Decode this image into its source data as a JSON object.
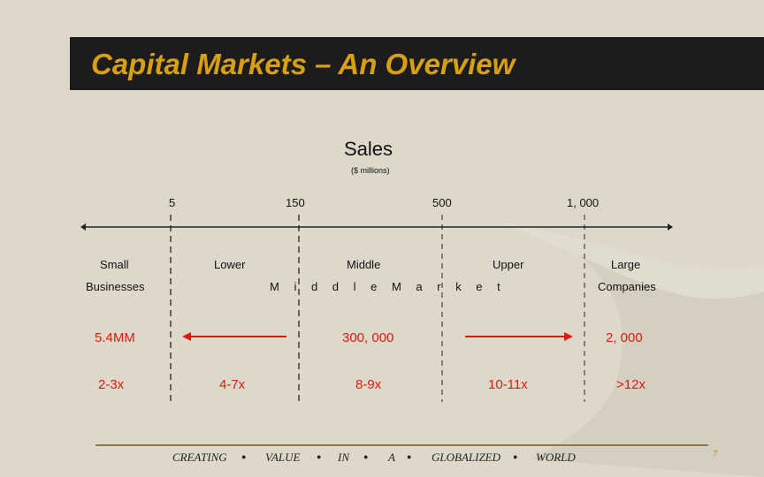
{
  "title": "Capital Markets – An Overview",
  "sales": {
    "label": "Sales",
    "units": "($ millions)"
  },
  "scale_ticks": [
    "5",
    "150",
    "500",
    "1, 000"
  ],
  "segments": {
    "small": "Small",
    "businesses": "Businesses",
    "lower": "Lower",
    "middle": "Middle",
    "upper": "Upper",
    "large": "Large",
    "companies": "Companies",
    "middle_market": "M i d d l e   M a r k e t"
  },
  "counts": {
    "small": "5.4MM",
    "middle": "300, 000",
    "large": "2, 000"
  },
  "multiples": {
    "small": "2-3x",
    "lower": "4-7x",
    "middle": "8-9x",
    "upper": "10-11x",
    "large": ">12x"
  },
  "footer": [
    "CREATING",
    "VALUE",
    "IN",
    "A",
    "GLOBALIZED",
    "WORLD"
  ],
  "page_number": "7",
  "colors": {
    "title_bar": "#1c1c1c",
    "title_text": "#d8a010",
    "accent_red": "#e0190d",
    "background": "#ddd8ca"
  }
}
